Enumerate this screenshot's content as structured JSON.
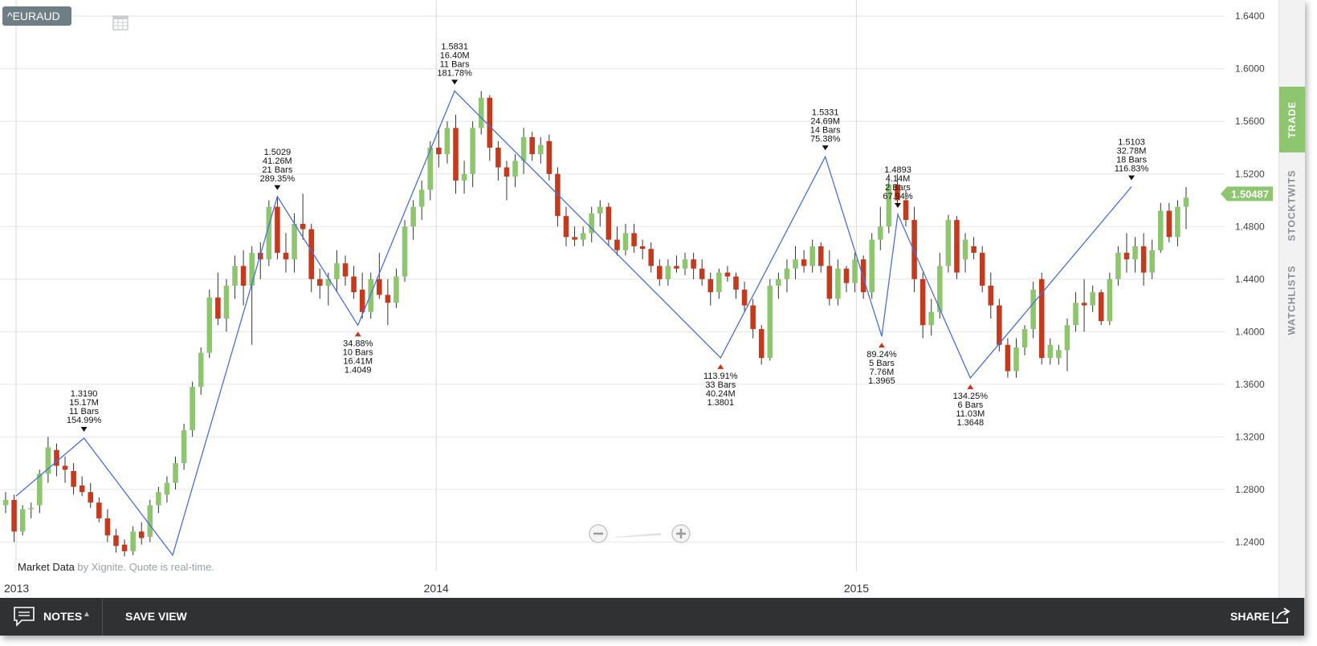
{
  "symbol": "^EURAUD",
  "market_note": {
    "label": "Market Data",
    "source": " by Xignite. Quote is real-time."
  },
  "sidebar": {
    "tabs": [
      {
        "label": "TRADE"
      },
      {
        "label": "STOCKTWITS"
      },
      {
        "label": "WATCHLISTS"
      }
    ]
  },
  "bottom_bar": {
    "notes_label": "NOTES",
    "save_view_label": "SAVE VIEW",
    "share_label": "SHARE"
  },
  "colors": {
    "up": "#8dc66f",
    "down": "#c43a1e",
    "zigzag": "#4a6fd8",
    "price_tag": "#8dc66f",
    "grid": "#e6e6e6"
  },
  "chart_data": {
    "type": "candlestick",
    "y_axis": {
      "range": [
        1.225,
        1.645
      ],
      "ticks": [
        "1.6400",
        "1.6000",
        "1.5600",
        "1.5200",
        "1.4800",
        "1.4400",
        "1.4000",
        "1.3600",
        "1.3200",
        "1.2800",
        "1.2400"
      ],
      "position": "right"
    },
    "x_axis": {
      "range": [
        "2013-01-01",
        "2015-10-20"
      ],
      "tick_labels": [
        {
          "label": "2013",
          "date": "2013-01-01"
        },
        {
          "label": "2014",
          "date": "2014-01-01"
        },
        {
          "label": "2015",
          "date": "2015-01-01"
        }
      ]
    },
    "last_price": "1.50487",
    "pivots": [
      {
        "date": "2013-01-01",
        "price": 1.275
      },
      {
        "date": "2013-03-01",
        "price": 1.319,
        "type": "high",
        "labels": [
          "1.3190",
          "15.17M",
          "11 Bars",
          "154.99%"
        ]
      },
      {
        "date": "2013-05-17",
        "price": 1.23
      },
      {
        "date": "2013-08-16",
        "price": 1.5029,
        "type": "high",
        "labels": [
          "1.5029",
          "41.26M",
          "21 Bars",
          "289.35%"
        ]
      },
      {
        "date": "2013-10-25",
        "price": 1.4049,
        "type": "low",
        "labels": [
          "34.88%",
          "10 Bars",
          "16.41M",
          "1.4049"
        ]
      },
      {
        "date": "2014-01-17",
        "price": 1.5831,
        "type": "high",
        "labels": [
          "1.5831",
          "16.40M",
          "11 Bars",
          "181.78%"
        ]
      },
      {
        "date": "2014-09-05",
        "price": 1.3801,
        "type": "low",
        "labels": [
          "113.91%",
          "33 Bars",
          "40.24M",
          "1.3801"
        ]
      },
      {
        "date": "2014-12-05",
        "price": 1.5331,
        "type": "high",
        "labels": [
          "1.5331",
          "24.69M",
          "14 Bars",
          "75.38%"
        ]
      },
      {
        "date": "2015-01-23",
        "price": 1.3965,
        "type": "low",
        "labels": [
          "89.24%",
          "5 Bars",
          "7.76M",
          "1.3965"
        ]
      },
      {
        "date": "2015-02-06",
        "price": 1.4893,
        "type": "high",
        "labels": [
          "1.4893",
          "4.14M",
          "2 Bars",
          "67.94%"
        ]
      },
      {
        "date": "2015-04-10",
        "price": 1.3648,
        "type": "low",
        "labels": [
          "134.25%",
          "6 Bars",
          "11.03M",
          "1.3648"
        ]
      },
      {
        "date": "2015-08-28",
        "price": 1.5103,
        "type": "high",
        "labels": [
          "1.5103",
          "32.78M",
          "18 Bars",
          "116.83%"
        ]
      }
    ],
    "candles": [
      [
        1.268,
        1.278,
        1.262,
        1.272
      ],
      [
        1.272,
        1.276,
        1.24,
        1.248
      ],
      [
        1.248,
        1.268,
        1.245,
        1.265
      ],
      [
        1.265,
        1.27,
        1.258,
        1.266
      ],
      [
        1.268,
        1.295,
        1.262,
        1.292
      ],
      [
        1.292,
        1.32,
        1.285,
        1.312
      ],
      [
        1.31,
        1.315,
        1.29,
        1.298
      ],
      [
        1.298,
        1.305,
        1.285,
        1.295
      ],
      [
        1.294,
        1.3,
        1.276,
        1.282
      ],
      [
        1.283,
        1.29,
        1.275,
        1.278
      ],
      [
        1.278,
        1.285,
        1.266,
        1.27
      ],
      [
        1.27,
        1.274,
        1.255,
        1.258
      ],
      [
        1.258,
        1.265,
        1.24,
        1.245
      ],
      [
        1.245,
        1.25,
        1.232,
        1.237
      ],
      [
        1.238,
        1.242,
        1.229,
        1.233
      ],
      [
        1.233,
        1.252,
        1.23,
        1.248
      ],
      [
        1.248,
        1.255,
        1.238,
        1.243
      ],
      [
        1.244,
        1.272,
        1.24,
        1.268
      ],
      [
        1.268,
        1.282,
        1.262,
        1.278
      ],
      [
        1.276,
        1.29,
        1.27,
        1.285
      ],
      [
        1.285,
        1.305,
        1.28,
        1.3
      ],
      [
        1.3,
        1.33,
        1.295,
        1.325
      ],
      [
        1.325,
        1.362,
        1.32,
        1.358
      ],
      [
        1.358,
        1.388,
        1.352,
        1.384
      ],
      [
        1.384,
        1.432,
        1.38,
        1.426
      ],
      [
        1.426,
        1.445,
        1.405,
        1.41
      ],
      [
        1.41,
        1.44,
        1.4,
        1.435
      ],
      [
        1.435,
        1.458,
        1.425,
        1.45
      ],
      [
        1.45,
        1.462,
        1.42,
        1.435
      ],
      [
        1.435,
        1.465,
        1.39,
        1.46
      ],
      [
        1.46,
        1.468,
        1.44,
        1.455
      ],
      [
        1.455,
        1.5,
        1.45,
        1.495
      ],
      [
        1.495,
        1.502,
        1.455,
        1.46
      ],
      [
        1.46,
        1.475,
        1.445,
        1.455
      ],
      [
        1.455,
        1.49,
        1.445,
        1.482
      ],
      [
        1.482,
        1.505,
        1.47,
        1.478
      ],
      [
        1.478,
        1.482,
        1.43,
        1.44
      ],
      [
        1.44,
        1.448,
        1.425,
        1.435
      ],
      [
        1.435,
        1.445,
        1.42,
        1.44
      ],
      [
        1.44,
        1.462,
        1.43,
        1.452
      ],
      [
        1.452,
        1.458,
        1.435,
        1.442
      ],
      [
        1.442,
        1.45,
        1.425,
        1.43
      ],
      [
        1.432,
        1.445,
        1.41,
        1.415
      ],
      [
        1.415,
        1.445,
        1.41,
        1.44
      ],
      [
        1.44,
        1.46,
        1.425,
        1.428
      ],
      [
        1.428,
        1.44,
        1.405,
        1.422
      ],
      [
        1.422,
        1.448,
        1.418,
        1.442
      ],
      [
        1.442,
        1.485,
        1.438,
        1.48
      ],
      [
        1.48,
        1.5,
        1.47,
        1.495
      ],
      [
        1.495,
        1.515,
        1.485,
        1.508
      ],
      [
        1.508,
        1.545,
        1.5,
        1.54
      ],
      [
        1.54,
        1.555,
        1.525,
        1.535
      ],
      [
        1.535,
        1.56,
        1.528,
        1.555
      ],
      [
        1.555,
        1.565,
        1.505,
        1.515
      ],
      [
        1.515,
        1.53,
        1.505,
        1.52
      ],
      [
        1.52,
        1.56,
        1.51,
        1.555
      ],
      [
        1.555,
        1.583,
        1.55,
        1.578
      ],
      [
        1.578,
        1.58,
        1.53,
        1.54
      ],
      [
        1.54,
        1.545,
        1.515,
        1.525
      ],
      [
        1.525,
        1.53,
        1.5,
        1.518
      ],
      [
        1.518,
        1.535,
        1.51,
        1.53
      ],
      [
        1.53,
        1.555,
        1.52,
        1.548
      ],
      [
        1.548,
        1.552,
        1.53,
        1.535
      ],
      [
        1.535,
        1.548,
        1.528,
        1.542
      ],
      [
        1.545,
        1.55,
        1.515,
        1.52
      ],
      [
        1.52,
        1.525,
        1.48,
        1.488
      ],
      [
        1.488,
        1.495,
        1.465,
        1.472
      ],
      [
        1.472,
        1.48,
        1.465,
        1.47
      ],
      [
        1.47,
        1.48,
        1.465,
        1.475
      ],
      [
        1.475,
        1.495,
        1.468,
        1.49
      ],
      [
        1.49,
        1.5,
        1.48,
        1.495
      ],
      [
        1.495,
        1.498,
        1.465,
        1.47
      ],
      [
        1.47,
        1.48,
        1.458,
        1.462
      ],
      [
        1.462,
        1.482,
        1.458,
        1.475
      ],
      [
        1.475,
        1.482,
        1.46,
        1.465
      ],
      [
        1.465,
        1.47,
        1.455,
        1.463
      ],
      [
        1.463,
        1.468,
        1.445,
        1.45
      ],
      [
        1.45,
        1.455,
        1.435,
        1.44
      ],
      [
        1.44,
        1.455,
        1.435,
        1.45
      ],
      [
        1.45,
        1.458,
        1.445,
        1.448
      ],
      [
        1.448,
        1.46,
        1.443,
        1.455
      ],
      [
        1.455,
        1.46,
        1.44,
        1.448
      ],
      [
        1.448,
        1.455,
        1.435,
        1.44
      ],
      [
        1.44,
        1.445,
        1.42,
        1.43
      ],
      [
        1.43,
        1.448,
        1.425,
        1.445
      ],
      [
        1.445,
        1.45,
        1.438,
        1.442
      ],
      [
        1.442,
        1.445,
        1.425,
        1.432
      ],
      [
        1.432,
        1.438,
        1.415,
        1.42
      ],
      [
        1.42,
        1.425,
        1.395,
        1.402
      ],
      [
        1.402,
        1.405,
        1.375,
        1.38
      ],
      [
        1.38,
        1.44,
        1.378,
        1.435
      ],
      [
        1.435,
        1.445,
        1.425,
        1.44
      ],
      [
        1.44,
        1.455,
        1.43,
        1.448
      ],
      [
        1.448,
        1.465,
        1.44,
        1.455
      ],
      [
        1.455,
        1.462,
        1.445,
        1.45
      ],
      [
        1.45,
        1.47,
        1.445,
        1.465
      ],
      [
        1.465,
        1.468,
        1.445,
        1.45
      ],
      [
        1.45,
        1.462,
        1.42,
        1.425
      ],
      [
        1.425,
        1.455,
        1.42,
        1.448
      ],
      [
        1.448,
        1.45,
        1.43,
        1.437
      ],
      [
        1.437,
        1.46,
        1.43,
        1.455
      ],
      [
        1.455,
        1.458,
        1.425,
        1.43
      ],
      [
        1.43,
        1.475,
        1.425,
        1.47
      ],
      [
        1.47,
        1.495,
        1.462,
        1.48
      ],
      [
        1.48,
        1.52,
        1.475,
        1.512
      ],
      [
        1.512,
        1.52,
        1.495,
        1.5
      ],
      [
        1.5,
        1.508,
        1.48,
        1.485
      ],
      [
        1.485,
        1.495,
        1.43,
        1.44
      ],
      [
        1.44,
        1.445,
        1.395,
        1.405
      ],
      [
        1.405,
        1.425,
        1.397,
        1.415
      ],
      [
        1.415,
        1.46,
        1.41,
        1.45
      ],
      [
        1.45,
        1.489,
        1.445,
        1.485
      ],
      [
        1.485,
        1.488,
        1.44,
        1.445
      ],
      [
        1.455,
        1.475,
        1.445,
        1.47
      ],
      [
        1.465,
        1.472,
        1.455,
        1.46
      ],
      [
        1.46,
        1.465,
        1.43,
        1.435
      ],
      [
        1.435,
        1.445,
        1.41,
        1.42
      ],
      [
        1.42,
        1.425,
        1.385,
        1.39
      ],
      [
        1.39,
        1.395,
        1.365,
        1.37
      ],
      [
        1.37,
        1.395,
        1.365,
        1.388
      ],
      [
        1.388,
        1.405,
        1.382,
        1.402
      ],
      [
        1.402,
        1.438,
        1.395,
        1.432
      ],
      [
        1.44,
        1.445,
        1.375,
        1.38
      ],
      [
        1.38,
        1.395,
        1.375,
        1.39
      ],
      [
        1.38,
        1.39,
        1.375,
        1.386
      ],
      [
        1.386,
        1.41,
        1.37,
        1.405
      ],
      [
        1.405,
        1.43,
        1.4,
        1.422
      ],
      [
        1.422,
        1.44,
        1.4,
        1.42
      ],
      [
        1.42,
        1.435,
        1.415,
        1.43
      ],
      [
        1.43,
        1.432,
        1.405,
        1.408
      ],
      [
        1.408,
        1.445,
        1.405,
        1.44
      ],
      [
        1.44,
        1.465,
        1.435,
        1.46
      ],
      [
        1.46,
        1.475,
        1.445,
        1.455
      ],
      [
        1.455,
        1.472,
        1.445,
        1.465
      ],
      [
        1.465,
        1.475,
        1.435,
        1.445
      ],
      [
        1.445,
        1.47,
        1.44,
        1.462
      ],
      [
        1.462,
        1.498,
        1.46,
        1.492
      ],
      [
        1.492,
        1.498,
        1.468,
        1.472
      ],
      [
        1.472,
        1.5,
        1.465,
        1.495
      ],
      [
        1.495,
        1.51,
        1.478,
        1.502
      ]
    ]
  }
}
